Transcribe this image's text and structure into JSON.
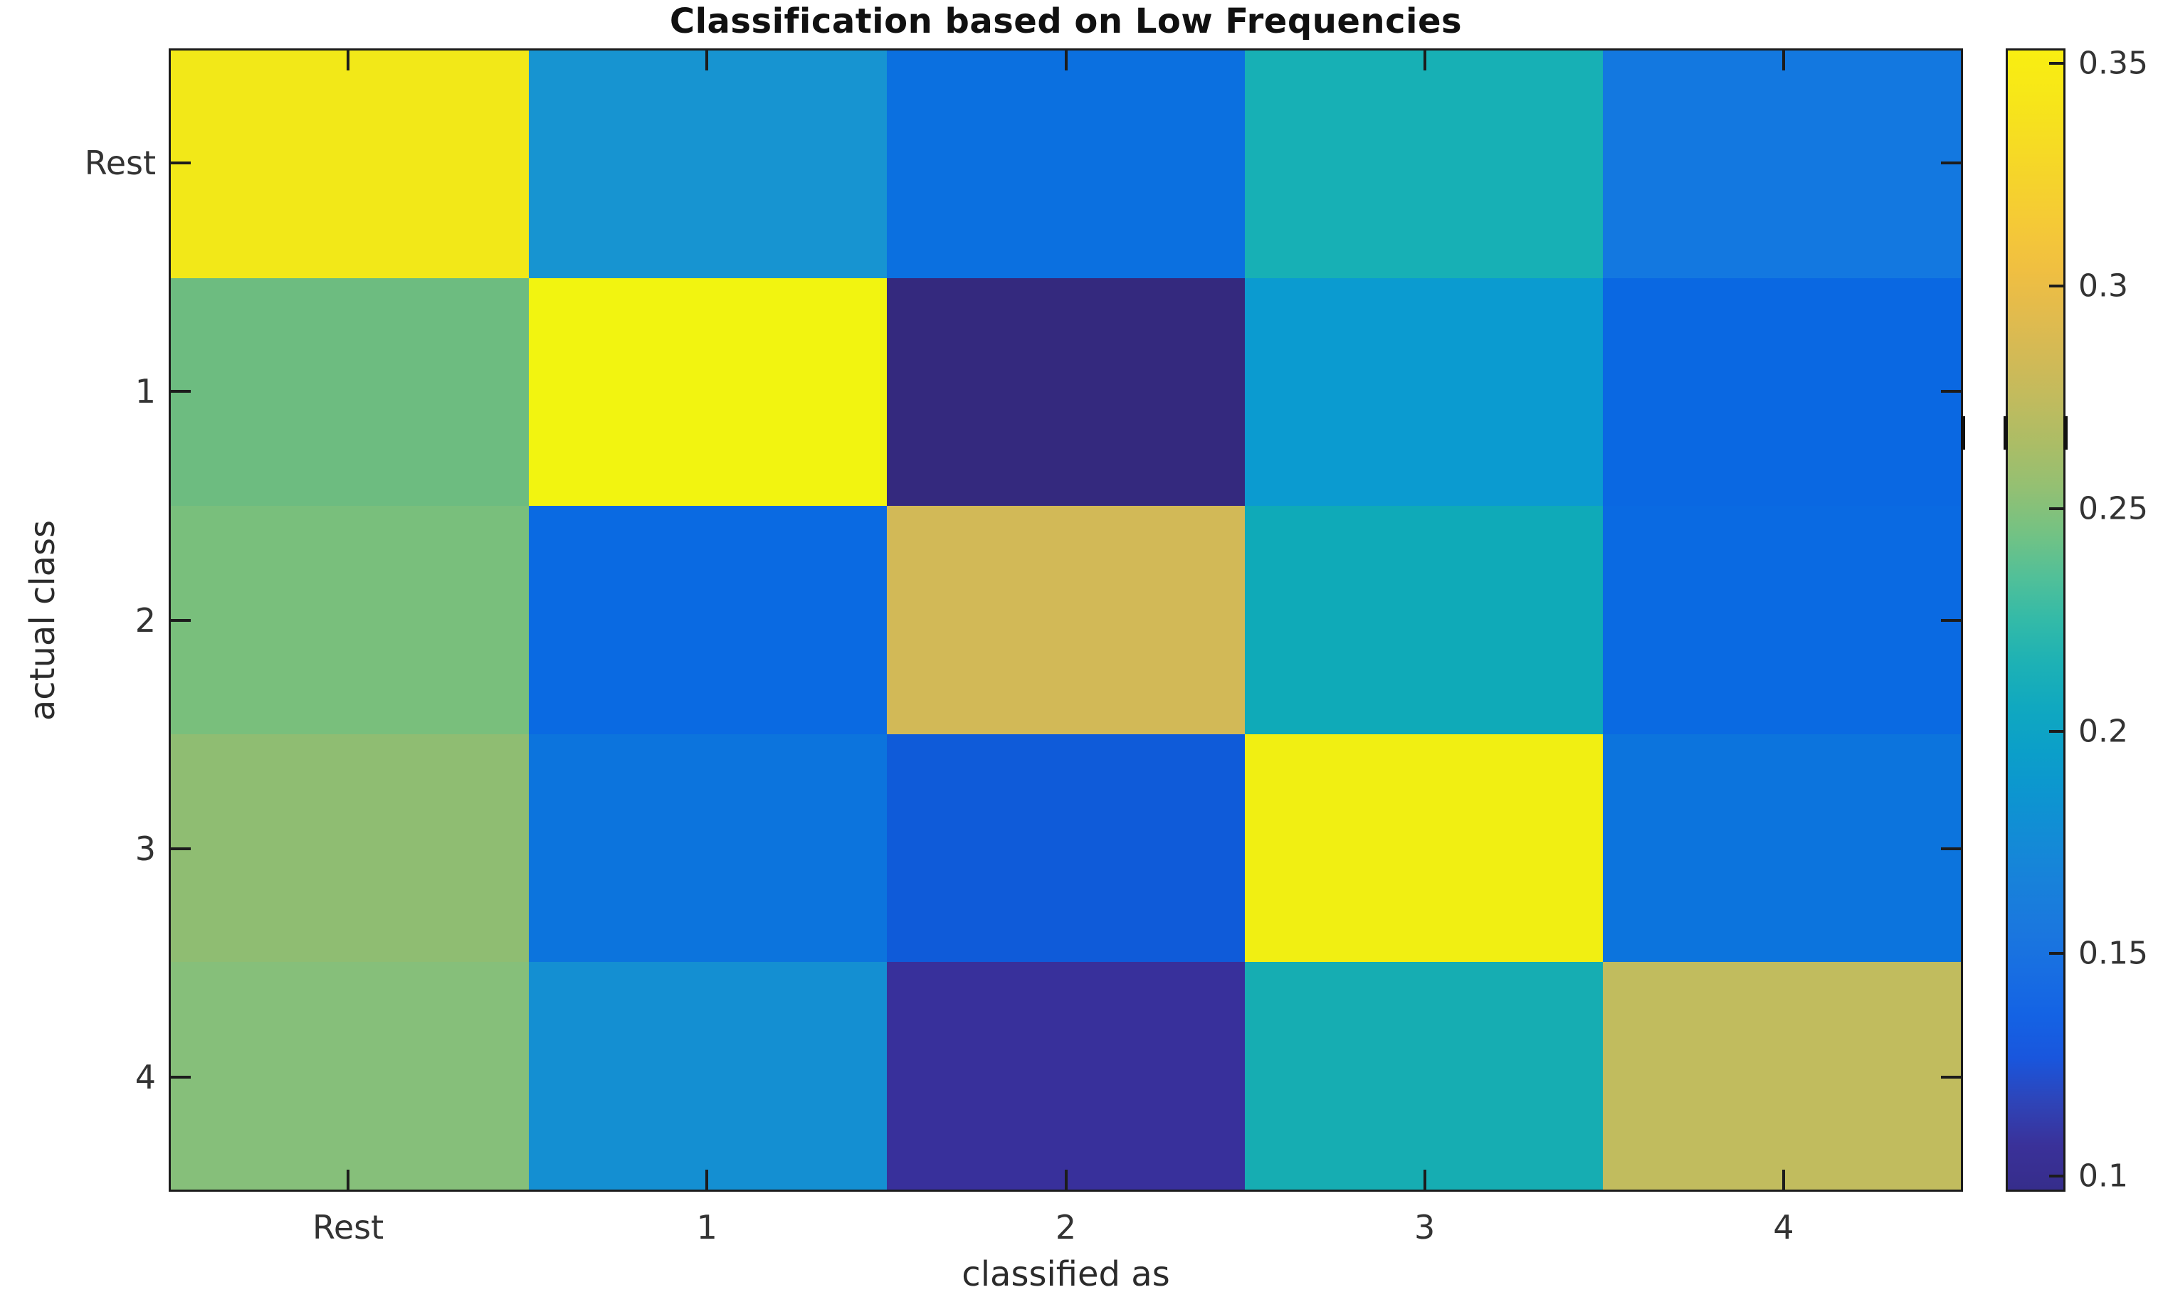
{
  "figure": {
    "background": "#ffffff",
    "text_color": "#333333",
    "axis_color": "#1c1c1c"
  },
  "chart_data": {
    "type": "heatmap",
    "title": "Classification based on Low Frequencies",
    "xlabel": "classified as",
    "ylabel": "actual class",
    "x_categories": [
      "Rest",
      "1",
      "2",
      "3",
      "4"
    ],
    "y_categories": [
      "Rest",
      "1",
      "2",
      "3",
      "4"
    ],
    "values": [
      [
        0.33,
        0.175,
        0.14,
        0.205,
        0.15
      ],
      [
        0.24,
        0.35,
        0.095,
        0.18,
        0.135
      ],
      [
        0.245,
        0.135,
        0.285,
        0.2,
        0.135
      ],
      [
        0.25,
        0.14,
        0.125,
        0.345,
        0.14
      ],
      [
        0.245,
        0.175,
        0.105,
        0.205,
        0.27
      ]
    ],
    "cell_colors": [
      [
        "#f2e818",
        "#1794d1",
        "#0b70e0",
        "#17b0b5",
        "#1378e0"
      ],
      [
        "#6dbc80",
        "#f2f410",
        "#34297e",
        "#0b9bd0",
        "#0a68e2"
      ],
      [
        "#79bf7c",
        "#0a6ae2",
        "#d2b957",
        "#0faab8",
        "#0a6ae2"
      ],
      [
        "#8fbd72",
        "#0c74dd",
        "#0f5bd9",
        "#f1ef12",
        "#0c74dd"
      ],
      [
        "#86bf7a",
        "#148fd2",
        "#38309b",
        "#16adb2",
        "#c1bc5e"
      ]
    ],
    "grid": false,
    "legend_position": "none",
    "colorbar": {
      "vmin": 0.0965,
      "vmax": 0.3534,
      "ticks": [
        0.35,
        0.3,
        0.25,
        0.2,
        0.15,
        0.1
      ],
      "tick_labels": [
        "0.35",
        "0.3",
        "0.25",
        "0.2",
        "0.15",
        "0.1"
      ],
      "colormap": "parula",
      "gradient_top_to_bottom": [
        "#f9ee11",
        "#f7e718",
        "#f6dd22",
        "#f5d32c",
        "#f5c937",
        "#f0bf41",
        "#e2bb4d",
        "#d2ba56",
        "#c0bb5e",
        "#abbd66",
        "#93c073",
        "#74c283",
        "#52c098",
        "#33baa8",
        "#1db1b5",
        "#10a8c0",
        "#0b9fc9",
        "#0d95d0",
        "#138bd6",
        "#1881da",
        "#1a78de",
        "#186ee2",
        "#1463e4",
        "#1956dd",
        "#2e44b8",
        "#3a3199",
        "#362d8b"
      ]
    }
  }
}
